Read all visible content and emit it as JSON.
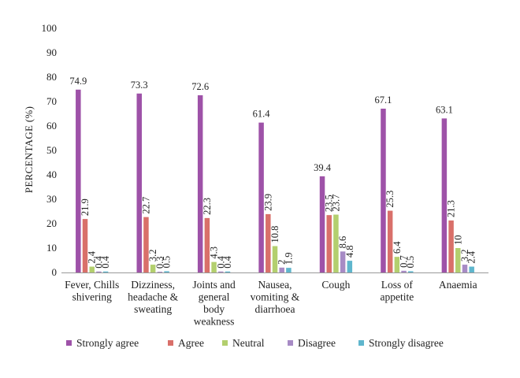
{
  "chart_data": {
    "type": "bar",
    "ylabel": "PERCENTAGE (%)",
    "ylim": [
      0,
      100
    ],
    "yticks": [
      0,
      10,
      20,
      30,
      40,
      50,
      60,
      70,
      80,
      90,
      100
    ],
    "grid": false,
    "legend_position": "bottom",
    "categories": [
      [
        "Fever, Chills",
        "shivering"
      ],
      [
        "Dizziness,",
        "headache &",
        "sweating"
      ],
      [
        "Joints and",
        "general",
        "body",
        "weakness"
      ],
      [
        "Nausea,",
        "vomiting &",
        "diarrhoea"
      ],
      [
        "Cough"
      ],
      [
        "Loss of",
        "appetite"
      ],
      [
        "Anaemia"
      ]
    ],
    "series": [
      {
        "name": "Strongly agree",
        "color": "#9e52a8",
        "values": [
          74.9,
          73.3,
          72.6,
          61.4,
          39.4,
          67.1,
          63.1
        ]
      },
      {
        "name": "Agree",
        "color": "#d9706a",
        "values": [
          21.9,
          22.7,
          22.3,
          23.9,
          23.5,
          25.3,
          21.3
        ]
      },
      {
        "name": "Neutral",
        "color": "#b3cf6e",
        "values": [
          2.4,
          3.2,
          4.3,
          10.8,
          23.7,
          6.4,
          10
        ]
      },
      {
        "name": "Disagree",
        "color": "#a78bc5",
        "values": [
          0.4,
          0.3,
          0.4,
          2,
          8.6,
          0.7,
          3.2
        ]
      },
      {
        "name": "Strongly disagree",
        "color": "#5fb6cd",
        "values": [
          0.4,
          0.5,
          0.4,
          1.9,
          4.8,
          0.5,
          2.4
        ]
      }
    ]
  }
}
